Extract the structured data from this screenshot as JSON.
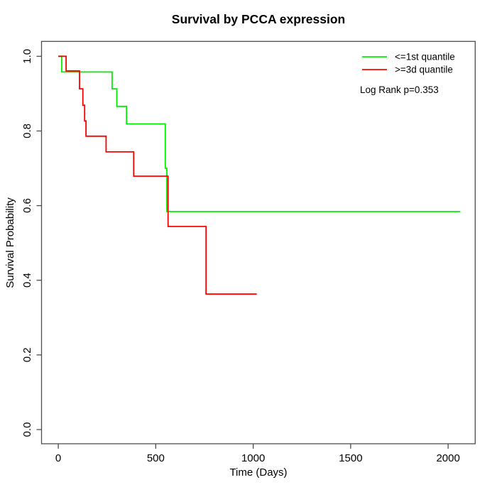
{
  "title": "Survival by PCCA expression",
  "colors": {
    "background": "#ffffff",
    "axis": "#4d4d4d",
    "text": "#000000",
    "series_green": "#00ee00",
    "series_red": "#ff0000"
  },
  "chart_data": {
    "type": "line",
    "subtype": "kaplan-meier-step",
    "title": "Survival by PCCA expression",
    "xlabel": "Time (Days)",
    "ylabel": "Survival Probability",
    "xlim": [
      -86,
      2139
    ],
    "ylim": [
      -0.038,
      1.04
    ],
    "x_ticks": [
      0,
      500,
      1000,
      1500,
      2000
    ],
    "y_ticks": [
      "0.0",
      "0.2",
      "0.4",
      "0.6",
      "0.8",
      "1.0"
    ],
    "grid": false,
    "legend_position": "top-right",
    "annotation": "Log Rank p=0.353",
    "series": [
      {
        "name": "<=1st quantile",
        "color": "#00ee00",
        "points": [
          [
            0,
            1.0
          ],
          [
            18,
            0.958
          ],
          [
            276,
            0.913
          ],
          [
            300,
            0.866
          ],
          [
            350,
            0.819
          ],
          [
            549,
            0.7
          ],
          [
            557,
            0.584
          ],
          [
            2063,
            0.584
          ]
        ]
      },
      {
        "name": ">=3d quantile",
        "color": "#ff0000",
        "points": [
          [
            0,
            1.0
          ],
          [
            40,
            0.961
          ],
          [
            109,
            0.913
          ],
          [
            126,
            0.869
          ],
          [
            135,
            0.827
          ],
          [
            142,
            0.786
          ],
          [
            245,
            0.744
          ],
          [
            387,
            0.679
          ],
          [
            563,
            0.544
          ],
          [
            758,
            0.363
          ],
          [
            1018,
            0.363
          ]
        ]
      }
    ]
  }
}
